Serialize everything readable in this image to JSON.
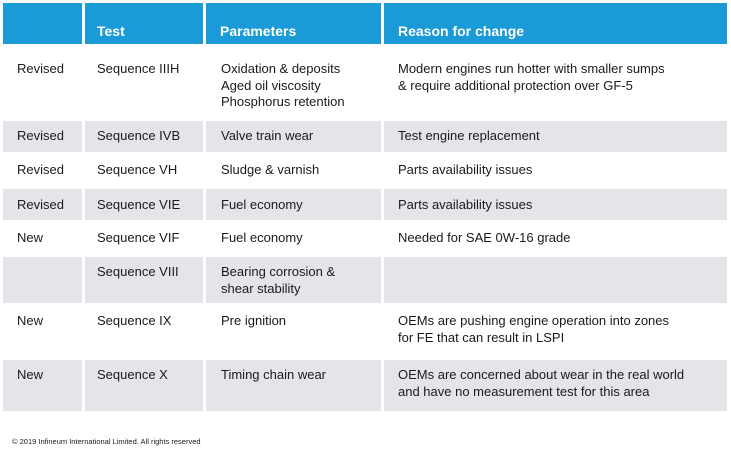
{
  "header": {
    "status": "",
    "test": "Test",
    "parameters": "Parameters",
    "reason": "Reason for change"
  },
  "rows": [
    {
      "status": "Revised",
      "test": "Sequence IIIH",
      "parameters": [
        "Oxidation & deposits",
        "Aged oil viscosity",
        "Phosphorus retention"
      ],
      "reason": [
        "Modern engines run hotter with smaller sumps",
        "& require additional protection over GF-5"
      ]
    },
    {
      "status": "Revised",
      "test": "Sequence IVB",
      "parameters": [
        "Valve train wear"
      ],
      "reason": [
        "Test engine replacement"
      ]
    },
    {
      "status": "Revised",
      "test": "Sequence VH",
      "parameters": [
        "Sludge & varnish"
      ],
      "reason": [
        "Parts availability issues"
      ]
    },
    {
      "status": "Revised",
      "test": "Sequence VIE",
      "parameters": [
        "Fuel economy"
      ],
      "reason": [
        "Parts availability issues"
      ]
    },
    {
      "status": "New",
      "test": "Sequence VIF",
      "parameters": [
        "Fuel economy"
      ],
      "reason": [
        "Needed for SAE 0W-16 grade"
      ]
    },
    {
      "status": "",
      "test": "Sequence VIII",
      "parameters": [
        "Bearing corrosion &",
        "shear stability"
      ],
      "reason": []
    },
    {
      "status": "New",
      "test": "Sequence IX",
      "parameters": [
        "Pre ignition"
      ],
      "reason": [
        "OEMs are pushing engine operation into zones",
        "for FE that can result in LSPI"
      ]
    },
    {
      "status": "New",
      "test": "Sequence X",
      "parameters": [
        "Timing chain wear"
      ],
      "reason": [
        "OEMs are concerned about wear in the real world",
        "and have no measurement test for this area"
      ]
    }
  ],
  "footer": "© 2019 Infineum International Limited. All rights reserved",
  "colors": {
    "header_bg": "#1a9ad6",
    "row_gray": "#e3e5e8",
    "row_white": "#ffffff"
  }
}
